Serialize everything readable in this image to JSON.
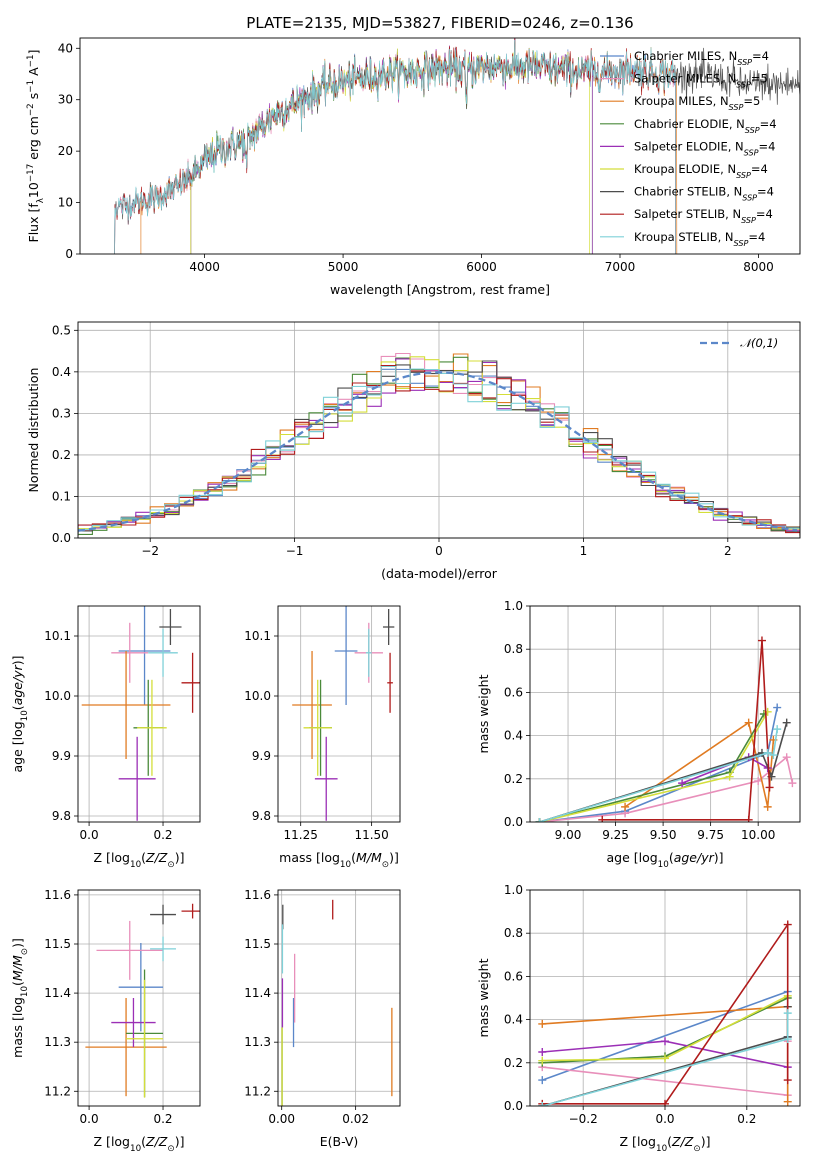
{
  "chart_data": [
    {
      "id": "spectrum",
      "type": "line",
      "title": "PLATE=2135, MJD=53827, FIBERID=0246, z=0.136",
      "xlabel": "wavelength [Angstrom, rest frame]",
      "ylabel": "Flux [f_λ 10^-17 erg cm^-2 s^-1 A^-1]",
      "xlim": [
        3100,
        8300
      ],
      "ylim": [
        0,
        42
      ],
      "xticks": [
        4000,
        5000,
        6000,
        7000,
        8000
      ],
      "yticks": [
        0,
        10,
        20,
        30,
        40
      ],
      "grid": false,
      "legend_position": "top-right",
      "continuum": {
        "x": [
          3350,
          3500,
          3650,
          3800,
          3900,
          4000,
          4100,
          4200,
          4300,
          4500,
          4700,
          4900,
          5100,
          5300,
          5500,
          5700,
          5900,
          6100,
          6300,
          6500,
          6700,
          6900,
          7100,
          7300,
          7500,
          7700,
          7900
        ],
        "y": [
          9,
          10,
          11,
          13,
          15,
          18,
          20,
          21,
          22,
          27,
          30,
          33,
          34,
          35,
          35.5,
          36,
          36,
          36.5,
          36.5,
          36,
          35.5,
          35.5,
          36,
          35,
          35,
          34.5,
          33
        ]
      },
      "series": [
        {
          "name": "Chabrier MILES, N_SSP=4",
          "color": "#5b87c9",
          "x_range": [
            3350,
            7400
          ]
        },
        {
          "name": "Salpeter MILES, N_SSP=5",
          "color": "#e88fba",
          "x_range": [
            3350,
            7400
          ]
        },
        {
          "name": "Kroupa MILES, N_SSP=5",
          "color": "#e07b22",
          "x_range": [
            3540,
            7410
          ]
        },
        {
          "name": "Chabrier ELODIE, N_SSP=4",
          "color": "#4a8a3a",
          "x_range": [
            3900,
            6800
          ]
        },
        {
          "name": "Salpeter ELODIE, N_SSP=4",
          "color": "#9b2fb6",
          "x_range": [
            3900,
            6800
          ]
        },
        {
          "name": "Kroupa ELODIE, N_SSP=4",
          "color": "#d4de3a",
          "x_range": [
            3900,
            6780
          ]
        },
        {
          "name": "Chabrier STELIB, N_SSP=4",
          "color": "#4d4d4d",
          "x_range": [
            3350,
            8300
          ]
        },
        {
          "name": "Salpeter STELIB, N_SSP=4",
          "color": "#b01c1c",
          "x_range": [
            3350,
            7400
          ]
        },
        {
          "name": "Kroupa STELIB, N_SSP=4",
          "color": "#7fd1d8",
          "x_range": [
            3350,
            7400
          ]
        }
      ]
    },
    {
      "id": "residuals",
      "type": "line",
      "xlabel": "(data-model)/error",
      "ylabel": "Normed distribution",
      "xlim": [
        -2.5,
        2.5
      ],
      "ylim": [
        0,
        0.52
      ],
      "xticks": [
        -2,
        -1,
        0,
        1,
        2
      ],
      "yticks": [
        0.0,
        0.1,
        0.2,
        0.3,
        0.4,
        0.5
      ],
      "grid": true,
      "legend_position": "top-right",
      "reference": {
        "name": "𝒩(0,1)",
        "color": "#5b87c9",
        "style": "dashed"
      },
      "bin_width": 0.1
    },
    {
      "id": "age_vs_Z",
      "type": "scatter",
      "xlabel": "Z [log10(Z/Z⊙)]",
      "ylabel": "age [log10(age/yr)]",
      "xlim": [
        -0.03,
        0.3
      ],
      "ylim": [
        9.79,
        10.15
      ],
      "xticks": [
        0.0,
        0.2
      ],
      "yticks": [
        9.8,
        9.9,
        10.0,
        10.1
      ],
      "grid": true,
      "points": [
        {
          "x": 0.15,
          "y": 10.075,
          "xerr": 0.07,
          "yerr": 0.09,
          "color": "#5b87c9"
        },
        {
          "x": 0.11,
          "y": 10.072,
          "xerr": 0.05,
          "yerr": 0.05,
          "color": "#e88fba"
        },
        {
          "x": 0.1,
          "y": 9.985,
          "xerr": 0.12,
          "yerr": 0.09,
          "color": "#e07b22"
        },
        {
          "x": 0.16,
          "y": 9.947,
          "xerr": 0.04,
          "yerr": 0.08,
          "color": "#4a8a3a"
        },
        {
          "x": 0.13,
          "y": 9.862,
          "xerr": 0.05,
          "yerr": 0.07,
          "color": "#9b2fb6"
        },
        {
          "x": 0.17,
          "y": 9.947,
          "xerr": 0.04,
          "yerr": 0.08,
          "color": "#d4de3a"
        },
        {
          "x": 0.22,
          "y": 10.115,
          "xerr": 0.03,
          "yerr": 0.03,
          "color": "#4d4d4d"
        },
        {
          "x": 0.28,
          "y": 10.022,
          "xerr": 0.03,
          "yerr": 0.05,
          "color": "#b01c1c"
        },
        {
          "x": 0.2,
          "y": 10.072,
          "xerr": 0.04,
          "yerr": 0.04,
          "color": "#7fd1d8"
        }
      ]
    },
    {
      "id": "age_vs_mass",
      "type": "scatter",
      "xlabel": "mass [log10(M/M⊙)]",
      "ylabel": "",
      "xlim": [
        11.17,
        11.6
      ],
      "ylim": [
        9.79,
        10.15
      ],
      "xticks": [
        11.25,
        11.5
      ],
      "yticks": [
        9.8,
        9.9,
        10.0,
        10.1
      ],
      "grid": true,
      "points": [
        {
          "x": 11.41,
          "y": 10.075,
          "xerr": 0.04,
          "yerr": 0.09,
          "color": "#5b87c9"
        },
        {
          "x": 11.49,
          "y": 10.072,
          "xerr": 0.05,
          "yerr": 0.05,
          "color": "#e88fba"
        },
        {
          "x": 11.29,
          "y": 9.985,
          "xerr": 0.07,
          "yerr": 0.09,
          "color": "#e07b22"
        },
        {
          "x": 11.32,
          "y": 9.947,
          "xerr": 0.04,
          "yerr": 0.08,
          "color": "#4a8a3a"
        },
        {
          "x": 11.34,
          "y": 9.862,
          "xerr": 0.04,
          "yerr": 0.07,
          "color": "#9b2fb6"
        },
        {
          "x": 11.31,
          "y": 9.947,
          "xerr": 0.05,
          "yerr": 0.08,
          "color": "#d4de3a"
        },
        {
          "x": 11.56,
          "y": 10.115,
          "xerr": 0.02,
          "yerr": 0.03,
          "color": "#4d4d4d"
        },
        {
          "x": 11.565,
          "y": 10.022,
          "xerr": 0.01,
          "yerr": 0.05,
          "color": "#b01c1c"
        },
        {
          "x": 11.49,
          "y": 10.072,
          "xerr": 0.01,
          "yerr": 0.04,
          "color": "#7fd1d8"
        }
      ]
    },
    {
      "id": "weight_vs_age",
      "type": "line",
      "xlabel": "age [log10(age/yr)]",
      "ylabel": "mass weight",
      "xlim": [
        8.8,
        10.22
      ],
      "ylim": [
        0,
        1.0
      ],
      "xticks": [
        9.0,
        9.25,
        9.5,
        9.75,
        10.0
      ],
      "yticks": [
        0.0,
        0.2,
        0.4,
        0.6,
        0.8,
        1.0
      ],
      "grid": true,
      "series": [
        {
          "color": "#5b87c9",
          "x": [
            8.85,
            9.3,
            10.05,
            10.1
          ],
          "y": [
            0.0,
            0.05,
            0.32,
            0.53
          ]
        },
        {
          "color": "#e88fba",
          "x": [
            8.85,
            9.3,
            10.0,
            10.15,
            10.18
          ],
          "y": [
            0.0,
            0.04,
            0.19,
            0.3,
            0.18
          ]
        },
        {
          "color": "#e07b22",
          "x": [
            9.3,
            9.95,
            10.05,
            10.08
          ],
          "y": [
            0.07,
            0.46,
            0.07,
            0.38
          ]
        },
        {
          "color": "#4a8a3a",
          "x": [
            8.85,
            9.85,
            10.03
          ],
          "y": [
            0.0,
            0.23,
            0.5
          ]
        },
        {
          "color": "#9b2fb6",
          "x": [
            9.6,
            9.95,
            10.05
          ],
          "y": [
            0.18,
            0.3,
            0.25
          ]
        },
        {
          "color": "#d4de3a",
          "x": [
            8.85,
            9.85,
            10.05
          ],
          "y": [
            0.0,
            0.21,
            0.51
          ]
        },
        {
          "color": "#4d4d4d",
          "x": [
            8.85,
            10.02,
            10.07,
            10.15
          ],
          "y": [
            0.0,
            0.32,
            0.21,
            0.46
          ]
        },
        {
          "color": "#b01c1c",
          "x": [
            9.18,
            9.95,
            10.02,
            10.06
          ],
          "y": [
            0.01,
            0.01,
            0.84,
            0.16
          ]
        },
        {
          "color": "#7fd1d8",
          "x": [
            8.85,
            10.05,
            10.08,
            10.1
          ],
          "y": [
            0.0,
            0.32,
            0.31,
            0.43
          ]
        }
      ]
    },
    {
      "id": "mass_vs_Z",
      "type": "scatter",
      "xlabel": "Z [log10(Z/Z⊙)]",
      "ylabel": "mass [log10(M/M⊙)]",
      "xlim": [
        -0.03,
        0.3
      ],
      "ylim": [
        11.17,
        11.61
      ],
      "xticks": [
        0.0,
        0.2
      ],
      "yticks": [
        11.2,
        11.3,
        11.4,
        11.5,
        11.6
      ],
      "grid": true,
      "points": [
        {
          "x": 0.14,
          "y": 11.412,
          "xerr": 0.06,
          "yerr": 0.09,
          "color": "#5b87c9"
        },
        {
          "x": 0.11,
          "y": 11.487,
          "xerr": 0.09,
          "yerr": 0.06,
          "color": "#e88fba"
        },
        {
          "x": 0.1,
          "y": 11.29,
          "xerr": 0.11,
          "yerr": 0.1,
          "color": "#e07b22"
        },
        {
          "x": 0.15,
          "y": 11.318,
          "xerr": 0.05,
          "yerr": 0.13,
          "color": "#4a8a3a"
        },
        {
          "x": 0.12,
          "y": 11.34,
          "xerr": 0.06,
          "yerr": 0.05,
          "color": "#9b2fb6"
        },
        {
          "x": 0.15,
          "y": 11.307,
          "xerr": 0.05,
          "yerr": 0.12,
          "color": "#d4de3a"
        },
        {
          "x": 0.2,
          "y": 11.56,
          "xerr": 0.035,
          "yerr": 0.02,
          "color": "#4d4d4d"
        },
        {
          "x": 0.28,
          "y": 11.567,
          "xerr": 0.03,
          "yerr": 0.015,
          "color": "#b01c1c"
        },
        {
          "x": 0.2,
          "y": 11.49,
          "xerr": 0.035,
          "yerr": 0.025,
          "color": "#7fd1d8"
        }
      ]
    },
    {
      "id": "mass_vs_ebv",
      "type": "scatter",
      "xlabel": "E(B-V)",
      "ylabel": "",
      "xlim": [
        -0.001,
        0.032
      ],
      "ylim": [
        11.17,
        11.61
      ],
      "xticks": [
        0.0,
        0.02
      ],
      "yticks": [
        11.2,
        11.3,
        11.4,
        11.5,
        11.6
      ],
      "grid": true,
      "points": [
        {
          "x": 0.0032,
          "y": 11.34,
          "xerr": 0,
          "yerr": 0.05,
          "color": "#5b87c9"
        },
        {
          "x": 0.0035,
          "y": 11.41,
          "xerr": 0,
          "yerr": 0.07,
          "color": "#e88fba"
        },
        {
          "x": 0.0298,
          "y": 11.28,
          "xerr": 0,
          "yerr": 0.09,
          "color": "#e07b22"
        },
        {
          "x": 0.0001,
          "y": 11.25,
          "xerr": 0,
          "yerr": 0.08,
          "color": "#4a8a3a"
        },
        {
          "x": 0.0002,
          "y": 11.38,
          "xerr": 0,
          "yerr": 0.05,
          "color": "#9b2fb6"
        },
        {
          "x": 0.0001,
          "y": 11.25,
          "xerr": 0,
          "yerr": 0.08,
          "color": "#d4de3a"
        },
        {
          "x": 0.0003,
          "y": 11.555,
          "xerr": 0,
          "yerr": 0.025,
          "color": "#4d4d4d"
        },
        {
          "x": 0.0138,
          "y": 11.57,
          "xerr": 0,
          "yerr": 0.02,
          "color": "#b01c1c"
        },
        {
          "x": 0.0002,
          "y": 11.49,
          "xerr": 0,
          "yerr": 0.05,
          "color": "#7fd1d8"
        }
      ]
    },
    {
      "id": "weight_vs_Z",
      "type": "line",
      "xlabel": "Z [log10(Z/Z⊙)]",
      "ylabel": "mass weight",
      "xlim": [
        -0.33,
        0.33
      ],
      "ylim": [
        0,
        1.0
      ],
      "xticks": [
        -0.2,
        0.0,
        0.2
      ],
      "yticks": [
        0.0,
        0.2,
        0.4,
        0.6,
        0.8,
        1.0
      ],
      "grid": true,
      "series": [
        {
          "color": "#5b87c9",
          "x": [
            -0.3,
            0.3,
            0.3
          ],
          "y": [
            0.12,
            0.53,
            0.32
          ]
        },
        {
          "color": "#e88fba",
          "x": [
            -0.3,
            0.3,
            0.3
          ],
          "y": [
            0.18,
            0.05,
            0.3
          ]
        },
        {
          "color": "#e07b22",
          "x": [
            -0.3,
            0.3,
            0.3
          ],
          "y": [
            0.38,
            0.46,
            0.02
          ]
        },
        {
          "color": "#4a8a3a",
          "x": [
            -0.3,
            0.0,
            0.3
          ],
          "y": [
            0.2,
            0.23,
            0.5
          ]
        },
        {
          "color": "#9b2fb6",
          "x": [
            -0.3,
            0.0,
            0.3
          ],
          "y": [
            0.25,
            0.3,
            0.18
          ]
        },
        {
          "color": "#d4de3a",
          "x": [
            -0.3,
            0.0,
            0.3
          ],
          "y": [
            0.21,
            0.22,
            0.51
          ]
        },
        {
          "color": "#4d4d4d",
          "x": [
            -0.3,
            0.3,
            0.3
          ],
          "y": [
            0.0,
            0.32,
            0.46
          ]
        },
        {
          "color": "#b01c1c",
          "x": [
            -0.3,
            0.0,
            0.3,
            0.3
          ],
          "y": [
            0.01,
            0.01,
            0.84,
            0.12
          ]
        },
        {
          "color": "#7fd1d8",
          "x": [
            -0.3,
            0.3,
            0.3
          ],
          "y": [
            0.0,
            0.31,
            0.43
          ]
        }
      ]
    }
  ]
}
